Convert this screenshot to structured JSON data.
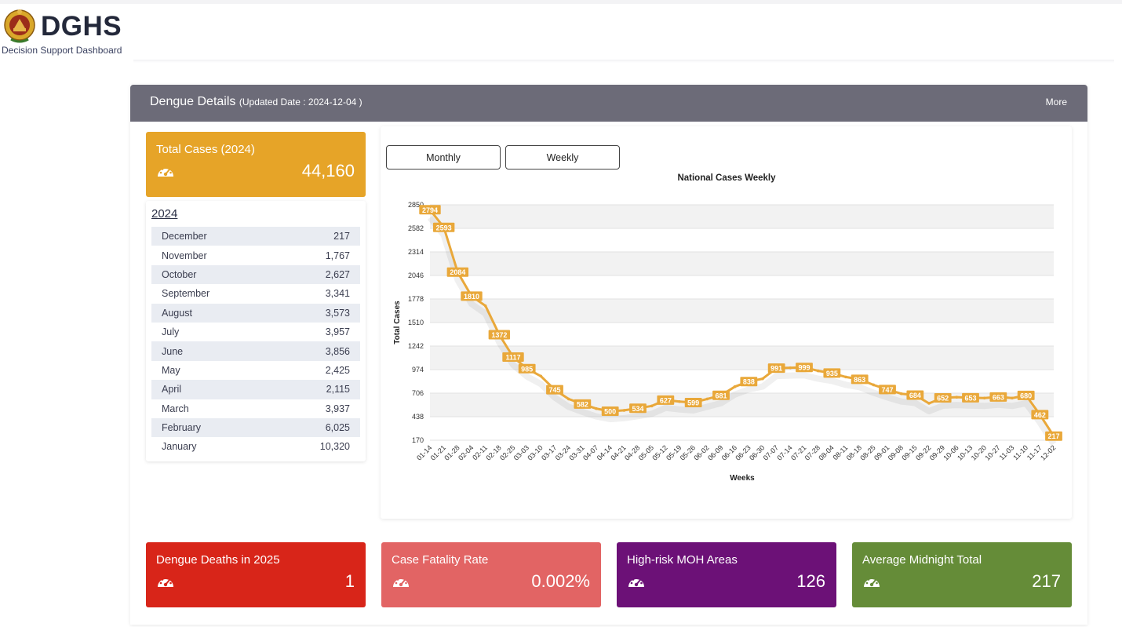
{
  "brand": {
    "title": "DGHS",
    "subtitle": "Decision Support Dashboard"
  },
  "panel": {
    "title": "Dengue Details",
    "updated": "(Updated Date : 2024-12-04 )",
    "more": "More"
  },
  "total_card": {
    "label": "Total Cases (2024)",
    "value": "44,160",
    "color": "#e6a428",
    "icon": "gauge-icon"
  },
  "monthly": {
    "year": "2024",
    "rows": [
      {
        "month": "December",
        "value": "217"
      },
      {
        "month": "November",
        "value": "1,767"
      },
      {
        "month": "October",
        "value": "2,627"
      },
      {
        "month": "September",
        "value": "3,341"
      },
      {
        "month": "August",
        "value": "3,573"
      },
      {
        "month": "July",
        "value": "3,957"
      },
      {
        "month": "June",
        "value": "3,856"
      },
      {
        "month": "May",
        "value": "2,425"
      },
      {
        "month": "April",
        "value": "2,115"
      },
      {
        "month": "March",
        "value": "3,937"
      },
      {
        "month": "February",
        "value": "6,025"
      },
      {
        "month": "January",
        "value": "10,320"
      }
    ]
  },
  "toggles": {
    "monthly": "Monthly",
    "weekly": "Weekly"
  },
  "chart_data": {
    "type": "line",
    "title": "National Cases Weekly",
    "xlabel": "Weeks",
    "ylabel": "Total Cases",
    "yticks": [
      170,
      438,
      706,
      974,
      1242,
      1510,
      1778,
      2046,
      2314,
      2582,
      2850
    ],
    "ylim": [
      170,
      2850
    ],
    "color": "#e9a83a",
    "categories": [
      "01-14",
      "01-21",
      "01-28",
      "02-04",
      "02-11",
      "02-18",
      "02-25",
      "03-03",
      "03-10",
      "03-17",
      "03-24",
      "03-31",
      "04-07",
      "04-14",
      "04-21",
      "04-28",
      "05-05",
      "05-12",
      "05-19",
      "05-26",
      "06-02",
      "06-09",
      "06-16",
      "06-23",
      "06-30",
      "07-07",
      "07-14",
      "07-21",
      "07-28",
      "08-04",
      "08-11",
      "08-18",
      "08-25",
      "09-01",
      "09-08",
      "09-15",
      "09-22",
      "09-29",
      "10-06",
      "10-13",
      "10-20",
      "10-27",
      "11-03",
      "11-10",
      "11-17",
      "12-02"
    ],
    "values": [
      2794,
      2593,
      2084,
      1810,
      1700,
      1372,
      1117,
      985,
      900,
      745,
      640,
      582,
      530,
      500,
      510,
      534,
      560,
      627,
      610,
      599,
      640,
      681,
      780,
      838,
      870,
      991,
      995,
      999,
      960,
      935,
      890,
      863,
      800,
      747,
      700,
      684,
      590,
      652,
      660,
      653,
      650,
      663,
      650,
      680,
      462,
      217
    ],
    "labels": [
      2794,
      2593,
      2084,
      1810,
      null,
      1372,
      1117,
      985,
      null,
      745,
      null,
      582,
      null,
      500,
      null,
      534,
      null,
      627,
      null,
      599,
      null,
      681,
      null,
      838,
      null,
      991,
      null,
      999,
      null,
      935,
      null,
      863,
      null,
      747,
      null,
      684,
      null,
      652,
      null,
      653,
      null,
      663,
      null,
      680,
      462,
      217
    ]
  },
  "bottom_cards": [
    {
      "label": "Dengue Deaths in 2025",
      "value": "1",
      "color": "#d82519",
      "icon": "gauge-icon"
    },
    {
      "label": "Case Fatality Rate",
      "value": "0.002%",
      "color": "#e26464",
      "icon": "gauge-icon"
    },
    {
      "label": "High-risk MOH Areas",
      "value": "126",
      "color": "#6c1177",
      "icon": "gauge-icon"
    },
    {
      "label": "Average Midnight Total",
      "value": "217",
      "color": "#658c38",
      "icon": "gauge-icon"
    }
  ]
}
